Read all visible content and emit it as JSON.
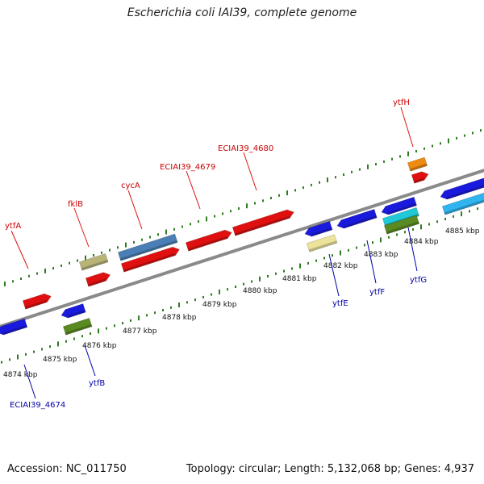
{
  "title": "Escherichia coli IAI39, complete genome",
  "footer": {
    "accession": "Accession: NC_011750",
    "summary": "Topology: circular; Length: 5,132,068 bp; Genes: 4,937"
  },
  "colors": {
    "backbone": "#8a8a8a",
    "tick": "#2e7d1f",
    "label_top": "#cc0000",
    "label_bottom": "#0000aa"
  },
  "kbp_labels": [
    "4874 kbp",
    "4875 kbp",
    "4876 kbp",
    "4877 kbp",
    "4878 kbp",
    "4879 kbp",
    "4880 kbp",
    "4881 kbp",
    "4882 kbp",
    "4883 kbp",
    "4884 kbp",
    "4885 kbp"
  ],
  "gene_labels_top": [
    "ytfA",
    "fklB",
    "cycA",
    "ECIAI39_4679",
    "ECIAI39_4680",
    "ytfH"
  ],
  "gene_labels_bottom": [
    "ECIAI39_4674",
    "ytfB",
    "ytfE",
    "ytfF",
    "ytfG"
  ],
  "feature_colors": {
    "red": "#e01010",
    "blue": "#1a1adf",
    "steelblue": "#4a7fb5",
    "khaki": "#b8b478",
    "paleyellow": "#ece39a",
    "olive": "#5a8a22",
    "orange": "#f08a10",
    "cyan": "#20c8d8",
    "skyblue": "#30b4f0"
  }
}
